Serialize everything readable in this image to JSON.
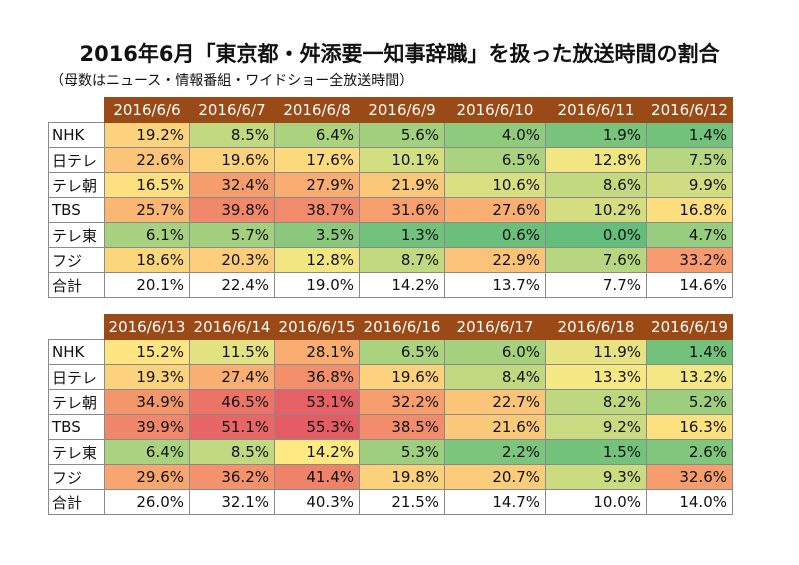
{
  "title": "2016年6月「東京都・舛添要一知事辞職」を扱った放送時間の割合",
  "subtitle": "（母数はニュース・情報番組・ワイドショー全放送時間）",
  "chart_data": [
    {
      "type": "heatmap",
      "categories": [
        "2016/6/6",
        "2016/6/7",
        "2016/6/8",
        "2016/6/9",
        "2016/6/10",
        "2016/6/11",
        "2016/6/12"
      ],
      "rows": [
        "NHK",
        "日テレ",
        "テレ朝",
        "TBS",
        "テレ東",
        "フジ"
      ],
      "values": [
        [
          19.2,
          8.5,
          6.4,
          5.6,
          4.0,
          1.9,
          1.4
        ],
        [
          22.6,
          19.6,
          17.6,
          10.1,
          6.5,
          12.8,
          7.5
        ],
        [
          16.5,
          32.4,
          27.9,
          21.9,
          10.6,
          8.6,
          9.9
        ],
        [
          25.7,
          39.8,
          38.7,
          31.6,
          27.6,
          10.2,
          16.8
        ],
        [
          6.1,
          5.7,
          3.5,
          1.3,
          0.6,
          0.0,
          4.7
        ],
        [
          18.6,
          20.3,
          12.8,
          8.7,
          22.9,
          7.6,
          33.2
        ]
      ],
      "total_label": "合計",
      "totals": [
        20.1,
        22.4,
        19.0,
        14.2,
        13.7,
        7.7,
        14.6
      ]
    },
    {
      "type": "heatmap",
      "categories": [
        "2016/6/13",
        "2016/6/14",
        "2016/6/15",
        "2016/6/16",
        "2016/6/17",
        "2016/6/18",
        "2016/6/19"
      ],
      "rows": [
        "NHK",
        "日テレ",
        "テレ朝",
        "TBS",
        "テレ東",
        "フジ"
      ],
      "values": [
        [
          15.2,
          11.5,
          28.1,
          6.5,
          6.0,
          11.9,
          1.4
        ],
        [
          19.3,
          27.4,
          36.8,
          19.6,
          8.4,
          13.3,
          13.2
        ],
        [
          34.9,
          46.5,
          53.1,
          32.2,
          22.7,
          8.2,
          5.2
        ],
        [
          39.9,
          51.1,
          55.3,
          38.5,
          21.6,
          9.2,
          16.3
        ],
        [
          6.4,
          8.5,
          14.2,
          5.3,
          2.2,
          1.5,
          2.6
        ],
        [
          29.6,
          36.2,
          41.4,
          19.8,
          20.7,
          9.3,
          32.6
        ]
      ],
      "total_label": "合計",
      "totals": [
        26.0,
        32.1,
        40.3,
        21.5,
        14.7,
        10.0,
        14.0
      ]
    }
  ]
}
